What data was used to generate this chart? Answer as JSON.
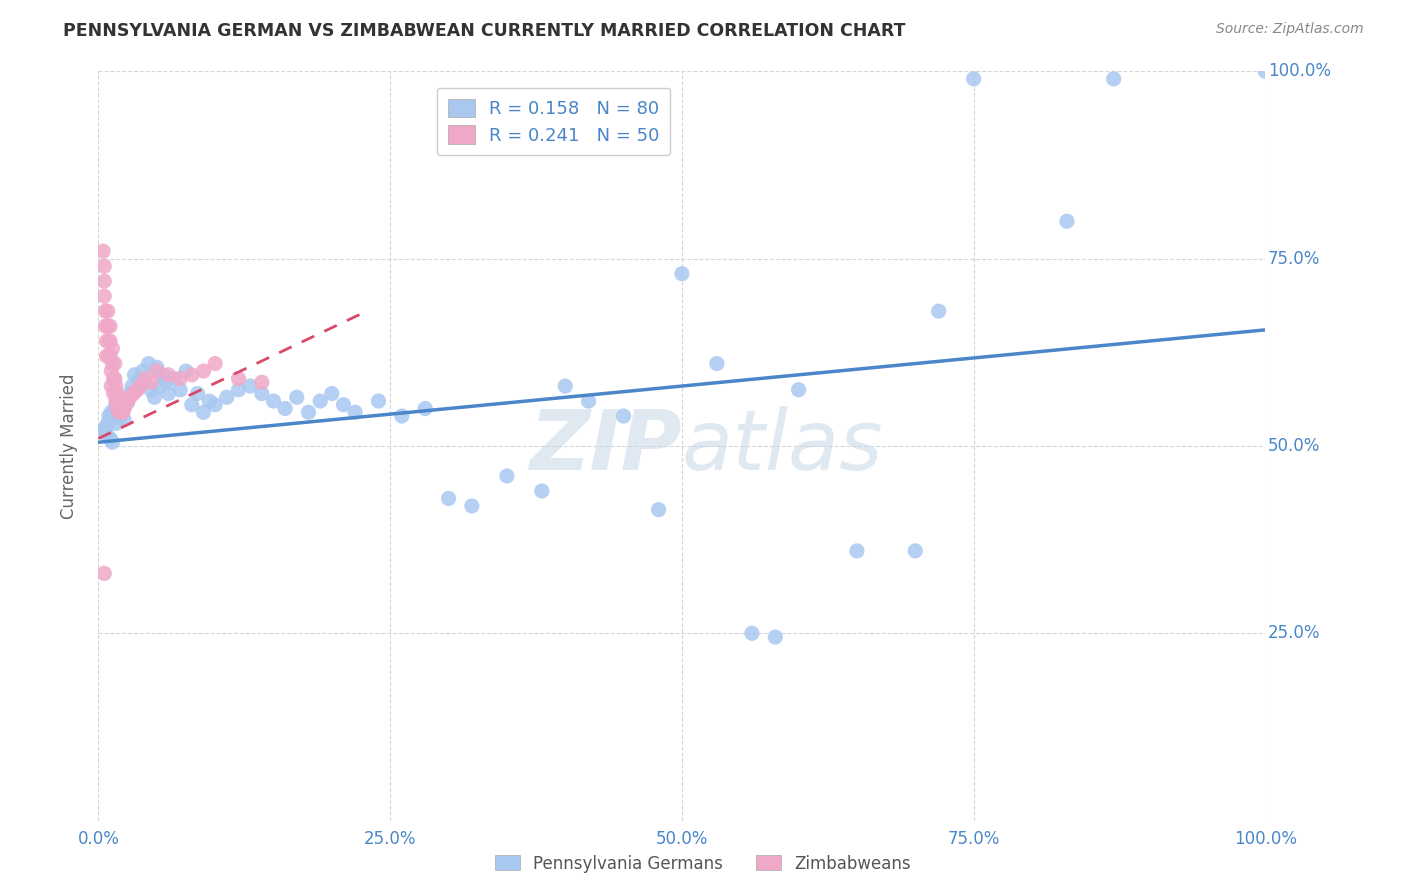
{
  "title": "PENNSYLVANIA GERMAN VS ZIMBABWEAN CURRENTLY MARRIED CORRELATION CHART",
  "source": "Source: ZipAtlas.com",
  "ylabel": "Currently Married",
  "legend_label1": "Pennsylvania Germans",
  "legend_label2": "Zimbabweans",
  "R1": 0.158,
  "N1": 80,
  "R2": 0.241,
  "N2": 50,
  "color1": "#a8c8f0",
  "color2": "#f0a8c8",
  "trendline1_color": "#4a86c8",
  "trendline2_color": "#d94a6a",
  "watermark_color": "#c8d8e8",
  "tick_color": "#4a86c8",
  "title_color": "#333333",
  "source_color": "#888888",
  "grid_color": "#cccccc",
  "blue_scatter_x": [
    0.005,
    0.006,
    0.007,
    0.008,
    0.009,
    0.01,
    0.01,
    0.011,
    0.012,
    0.013,
    0.014,
    0.015,
    0.015,
    0.016,
    0.017,
    0.018,
    0.019,
    0.02,
    0.021,
    0.022,
    0.023,
    0.025,
    0.027,
    0.029,
    0.031,
    0.033,
    0.035,
    0.038,
    0.04,
    0.043,
    0.045,
    0.048,
    0.05,
    0.053,
    0.055,
    0.058,
    0.06,
    0.065,
    0.07,
    0.075,
    0.08,
    0.085,
    0.09,
    0.095,
    0.1,
    0.11,
    0.12,
    0.13,
    0.14,
    0.15,
    0.16,
    0.17,
    0.18,
    0.19,
    0.2,
    0.21,
    0.22,
    0.24,
    0.26,
    0.28,
    0.3,
    0.32,
    0.35,
    0.38,
    0.4,
    0.42,
    0.45,
    0.48,
    0.5,
    0.53,
    0.56,
    0.58,
    0.6,
    0.65,
    0.7,
    0.72,
    0.75,
    0.83,
    0.87,
    1.0
  ],
  "blue_scatter_y": [
    0.52,
    0.525,
    0.515,
    0.53,
    0.54,
    0.51,
    0.535,
    0.545,
    0.505,
    0.54,
    0.55,
    0.555,
    0.53,
    0.545,
    0.56,
    0.538,
    0.548,
    0.542,
    0.555,
    0.535,
    0.56,
    0.558,
    0.57,
    0.58,
    0.595,
    0.575,
    0.59,
    0.6,
    0.585,
    0.61,
    0.575,
    0.565,
    0.605,
    0.58,
    0.595,
    0.585,
    0.57,
    0.59,
    0.575,
    0.6,
    0.555,
    0.57,
    0.545,
    0.56,
    0.555,
    0.565,
    0.575,
    0.58,
    0.57,
    0.56,
    0.55,
    0.565,
    0.545,
    0.56,
    0.57,
    0.555,
    0.545,
    0.56,
    0.54,
    0.55,
    0.43,
    0.42,
    0.46,
    0.44,
    0.58,
    0.56,
    0.54,
    0.415,
    0.73,
    0.61,
    0.25,
    0.245,
    0.575,
    0.36,
    0.36,
    0.68,
    0.99,
    0.8,
    0.99,
    1.0
  ],
  "pink_scatter_x": [
    0.004,
    0.005,
    0.005,
    0.005,
    0.006,
    0.006,
    0.007,
    0.007,
    0.008,
    0.008,
    0.009,
    0.009,
    0.01,
    0.01,
    0.01,
    0.011,
    0.011,
    0.012,
    0.012,
    0.013,
    0.013,
    0.014,
    0.014,
    0.015,
    0.015,
    0.016,
    0.016,
    0.017,
    0.018,
    0.019,
    0.02,
    0.021,
    0.022,
    0.023,
    0.025,
    0.027,
    0.03,
    0.033,
    0.036,
    0.04,
    0.045,
    0.05,
    0.06,
    0.07,
    0.08,
    0.09,
    0.1,
    0.12,
    0.14,
    0.005
  ],
  "pink_scatter_y": [
    0.76,
    0.74,
    0.72,
    0.7,
    0.68,
    0.66,
    0.64,
    0.62,
    0.68,
    0.66,
    0.64,
    0.62,
    0.66,
    0.64,
    0.62,
    0.6,
    0.58,
    0.63,
    0.61,
    0.59,
    0.57,
    0.61,
    0.59,
    0.58,
    0.56,
    0.57,
    0.55,
    0.56,
    0.545,
    0.555,
    0.56,
    0.545,
    0.55,
    0.555,
    0.56,
    0.565,
    0.57,
    0.575,
    0.58,
    0.59,
    0.585,
    0.6,
    0.595,
    0.59,
    0.595,
    0.6,
    0.61,
    0.59,
    0.585,
    0.33
  ],
  "trendline1_x": [
    0.0,
    1.0
  ],
  "trendline1_y": [
    0.505,
    0.655
  ],
  "trendline2_x": [
    0.0,
    0.23
  ],
  "trendline2_y": [
    0.51,
    0.68
  ],
  "xlim": [
    0,
    1.0
  ],
  "ylim": [
    0,
    1.0
  ],
  "xticks": [
    0,
    0.25,
    0.5,
    0.75,
    1.0
  ],
  "yticks": [
    0.25,
    0.5,
    0.75,
    1.0
  ],
  "xticklabels": [
    "0.0%",
    "25.0%",
    "50.0%",
    "75.0%",
    "100.0%"
  ],
  "yticklabels_right": [
    "25.0%",
    "50.0%",
    "75.0%",
    "100.0%"
  ]
}
